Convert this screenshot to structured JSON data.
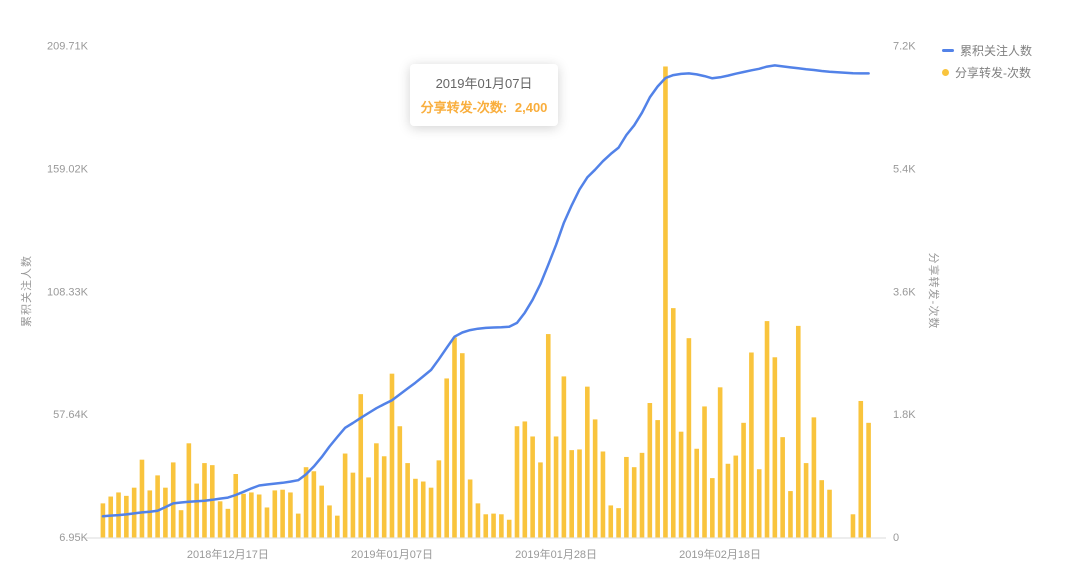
{
  "legend": {
    "items": [
      {
        "label": "累积关注人数",
        "marker": "line-dash",
        "color": "#5282E8"
      },
      {
        "label": "分享转发-次数",
        "marker": "dot",
        "color": "#F9C43D"
      }
    ]
  },
  "tooltip": {
    "date": "2019年01月07日",
    "series_label": "分享转发-次数:",
    "value": "2,400",
    "text_color": "#F9AE3D"
  },
  "chart_data": {
    "type": "combo-line-bar",
    "title": "",
    "grid": false,
    "legend_position": "top-right",
    "highlight_index": 37,
    "x": [
      "2018-12-01",
      "2018-12-02",
      "2018-12-03",
      "2018-12-04",
      "2018-12-05",
      "2018-12-06",
      "2018-12-07",
      "2018-12-08",
      "2018-12-09",
      "2018-12-10",
      "2018-12-11",
      "2018-12-12",
      "2018-12-13",
      "2018-12-14",
      "2018-12-15",
      "2018-12-16",
      "2018-12-17",
      "2018-12-18",
      "2018-12-19",
      "2018-12-20",
      "2018-12-21",
      "2018-12-22",
      "2018-12-23",
      "2018-12-24",
      "2018-12-25",
      "2018-12-26",
      "2018-12-27",
      "2018-12-28",
      "2018-12-29",
      "2018-12-30",
      "2018-12-31",
      "2019-01-01",
      "2019-01-02",
      "2019-01-03",
      "2019-01-04",
      "2019-01-05",
      "2019-01-06",
      "2019-01-07",
      "2019-01-08",
      "2019-01-09",
      "2019-01-10",
      "2019-01-11",
      "2019-01-12",
      "2019-01-13",
      "2019-01-14",
      "2019-01-15",
      "2019-01-16",
      "2019-01-17",
      "2019-01-18",
      "2019-01-19",
      "2019-01-20",
      "2019-01-21",
      "2019-01-22",
      "2019-01-23",
      "2019-01-24",
      "2019-01-25",
      "2019-01-26",
      "2019-01-27",
      "2019-01-28",
      "2019-01-29",
      "2019-01-30",
      "2019-01-31",
      "2019-02-01",
      "2019-02-02",
      "2019-02-03",
      "2019-02-04",
      "2019-02-05",
      "2019-02-06",
      "2019-02-07",
      "2019-02-08",
      "2019-02-09",
      "2019-02-10",
      "2019-02-11",
      "2019-02-12",
      "2019-02-13",
      "2019-02-14",
      "2019-02-15",
      "2019-02-16",
      "2019-02-17",
      "2019-02-18",
      "2019-02-19",
      "2019-02-20",
      "2019-02-21",
      "2019-02-22",
      "2019-02-23",
      "2019-02-24",
      "2019-02-25",
      "2019-02-26",
      "2019-02-27",
      "2019-02-28",
      "2019-03-01",
      "2019-03-02",
      "2019-03-03",
      "2019-03-04",
      "2019-03-05",
      "2019-03-06",
      "2019-03-07",
      "2019-03-08",
      "2019-03-09"
    ],
    "x_ticks": [
      {
        "index": 16,
        "label": "2018年12月17日"
      },
      {
        "index": 37,
        "label": "2019年01月07日"
      },
      {
        "index": 58,
        "label": "2019年01月28日"
      },
      {
        "index": 79,
        "label": "2019年02月18日"
      }
    ],
    "left_axis": {
      "name": "累积关注人数",
      "min": 6950,
      "max": 209710,
      "tick_labels": [
        "6.95K",
        "57.64K",
        "108.33K",
        "159.02K",
        "209.71K"
      ]
    },
    "right_axis": {
      "name": "分享转发-次数",
      "min": 0,
      "max": 7200,
      "tick_labels": [
        "0",
        "1.8K",
        "3.6K",
        "5.4K",
        "7.2K"
      ]
    },
    "series": [
      {
        "name": "累积关注人数",
        "type": "line",
        "y_axis": "left",
        "color": "#5282E8",
        "values": [
          15700,
          16000,
          16200,
          16500,
          16900,
          17300,
          17600,
          18000,
          19500,
          21000,
          21400,
          21700,
          21900,
          22100,
          22500,
          23000,
          23400,
          24500,
          25800,
          27200,
          28400,
          28800,
          29200,
          29500,
          30000,
          30600,
          33000,
          36300,
          40100,
          44500,
          48400,
          52200,
          54200,
          56300,
          58300,
          60300,
          62000,
          63600,
          66000,
          68400,
          70800,
          73400,
          76100,
          80500,
          85200,
          89800,
          91500,
          92500,
          93100,
          93400,
          93600,
          93700,
          93900,
          95500,
          99700,
          105000,
          111500,
          119500,
          127700,
          136800,
          144000,
          150500,
          155500,
          158700,
          162200,
          165200,
          167800,
          173000,
          177000,
          182200,
          188500,
          193000,
          196500,
          197700,
          198200,
          198400,
          198000,
          197300,
          196400,
          196800,
          197500,
          198300,
          199000,
          199700,
          200300,
          201200,
          201700,
          201300,
          200900,
          200500,
          200100,
          199800,
          199400,
          199100,
          198900,
          198700,
          198500,
          198400,
          198400
        ]
      },
      {
        "name": "分享转发-次数",
        "type": "bar",
        "y_axis": "right",
        "color": "#F9C43D",
        "values": [
          500,
          600,
          660,
          610,
          730,
          1140,
          690,
          910,
          730,
          1100,
          400,
          1380,
          790,
          1090,
          1060,
          530,
          420,
          930,
          640,
          660,
          630,
          440,
          690,
          700,
          660,
          350,
          1030,
          970,
          760,
          470,
          320,
          1230,
          950,
          2100,
          880,
          1380,
          1190,
          2400,
          1630,
          1090,
          860,
          820,
          730,
          1130,
          2330,
          2930,
          2700,
          850,
          500,
          340,
          350,
          340,
          260,
          1630,
          1700,
          1480,
          1100,
          2980,
          1480,
          2360,
          1280,
          1290,
          2210,
          1730,
          1260,
          470,
          430,
          1180,
          1030,
          1240,
          1970,
          1720,
          6900,
          3360,
          1550,
          2920,
          1300,
          1920,
          870,
          2200,
          1080,
          1200,
          1680,
          2710,
          1000,
          3170,
          2640,
          1470,
          680,
          3100,
          1090,
          1760,
          840,
          700,
          0,
          0,
          340,
          2000,
          1680
        ]
      }
    ],
    "style": {
      "axis_text_color": "#999999",
      "axis_line_color": "#E7E7E7",
      "line_width": 2.5,
      "bar_width": 4.6
    }
  }
}
